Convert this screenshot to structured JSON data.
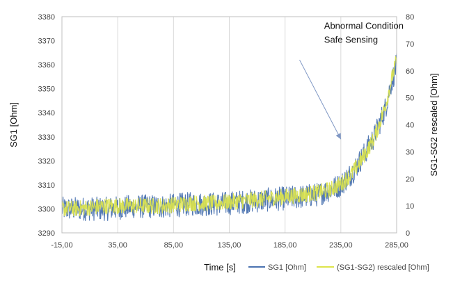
{
  "chart_data": {
    "type": "line",
    "title": "",
    "xlabel": "Time [s]",
    "ylabel": "SG1 [Ohm]",
    "y2label": "SG1-SG2 rescaled [Ohm]",
    "xlim": [
      -15,
      285
    ],
    "ylim": [
      3290,
      3380
    ],
    "y2lim": [
      0,
      80
    ],
    "x_ticks": [
      "-15,00",
      "35,00",
      "85,00",
      "135,00",
      "185,00",
      "235,00",
      "285,00"
    ],
    "x_tick_values": [
      -15,
      35,
      85,
      135,
      185,
      235,
      285
    ],
    "y_ticks": [
      "3290",
      "3300",
      "3310",
      "3320",
      "3330",
      "3340",
      "3350",
      "3360",
      "3370",
      "3380"
    ],
    "y_tick_values": [
      3290,
      3300,
      3310,
      3320,
      3330,
      3340,
      3350,
      3360,
      3370,
      3380
    ],
    "y2_ticks": [
      "0",
      "10",
      "20",
      "30",
      "40",
      "50",
      "60",
      "70",
      "80"
    ],
    "y2_tick_values": [
      0,
      10,
      20,
      30,
      40,
      50,
      60,
      70,
      80
    ],
    "grid": "vertical",
    "legend_position": "bottom-right",
    "annotation": {
      "lines": [
        "Abnormal Condition",
        "Safe Sensing"
      ],
      "text_at": [
        220,
        3375
      ],
      "arrow_from": [
        198,
        3362
      ],
      "arrow_to": [
        235,
        3329
      ]
    },
    "series": [
      {
        "name": "SG1 [Ohm]",
        "axis": "left",
        "color": "#4a72b0",
        "noise": 5,
        "x": [
          -15,
          0,
          25,
          50,
          75,
          100,
          125,
          150,
          175,
          200,
          215,
          225,
          235,
          245,
          255,
          265,
          275,
          280,
          285
        ],
        "y": [
          3300,
          3300,
          3300,
          3301,
          3301,
          3302,
          3302,
          3303,
          3304,
          3305,
          3306,
          3308,
          3310,
          3315,
          3322,
          3330,
          3342,
          3352,
          3360
        ]
      },
      {
        "name": "(SG1-SG2) rescaled [Ohm]",
        "axis": "right",
        "color": "#dde44a",
        "noise": 3,
        "x": [
          -15,
          0,
          25,
          50,
          75,
          100,
          125,
          150,
          175,
          200,
          215,
          225,
          235,
          245,
          255,
          265,
          275,
          280,
          285
        ],
        "y": [
          9,
          9,
          10,
          10,
          10,
          11,
          11,
          12,
          13,
          14,
          15,
          16,
          18,
          22,
          28,
          35,
          47,
          56,
          64
        ]
      }
    ]
  }
}
